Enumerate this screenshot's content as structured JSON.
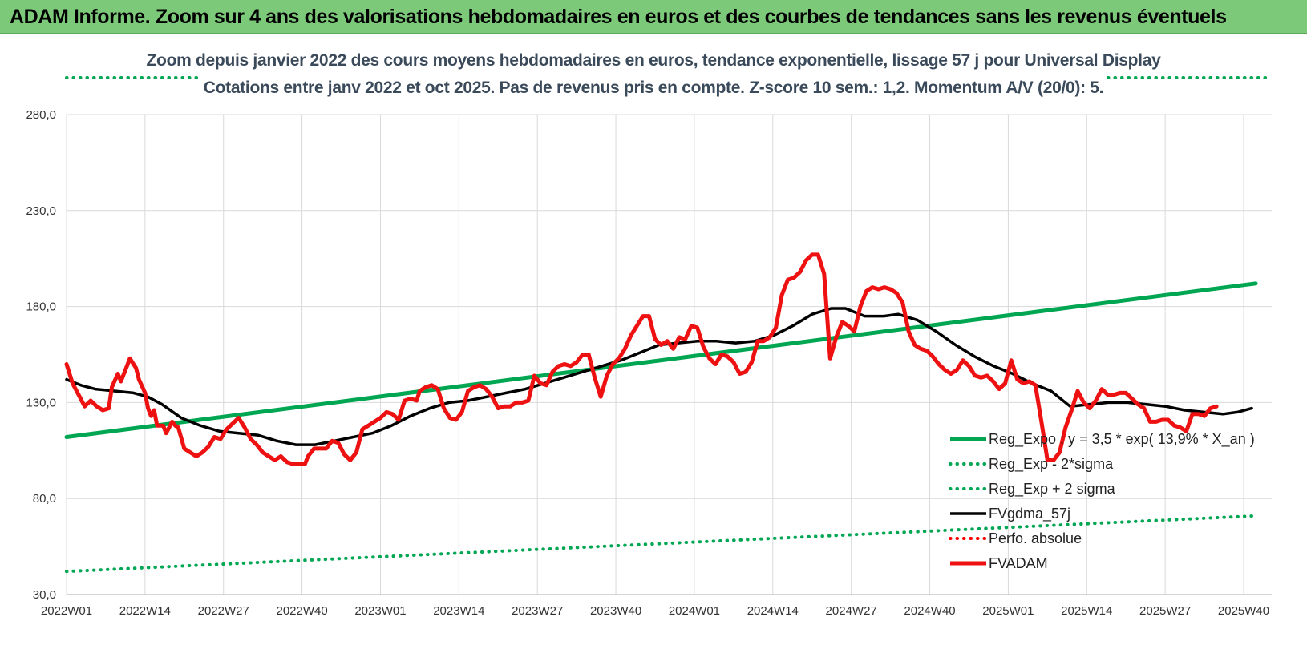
{
  "header": {
    "title": "ADAM Informe. Zoom sur 4 ans des valorisations hebdomadaires en euros et des courbes de tendances sans les revenus éventuels"
  },
  "chart_data": {
    "type": "line",
    "title": "Zoom depuis janvier 2022 des cours moyens hebdomadaires en euros, tendance exponentielle, lissage 57 j pour Universal Display",
    "subtitle": "Cotations entre janv 2022 et oct 2025. Pas de revenus pris en compte. Z-score 10 sem.: 1,2. Momentum A/V (20/0): 5.",
    "xlabel": "",
    "ylabel": "",
    "ylim": [
      30,
      280
    ],
    "yticks": [
      "30,0",
      "80,0",
      "130,0",
      "180,0",
      "230,0",
      "280,0"
    ],
    "yticks_values": [
      30,
      80,
      130,
      180,
      230,
      280
    ],
    "xticks": [
      "2022W01",
      "2022W14",
      "2022W27",
      "2022W40",
      "2023W01",
      "2023W14",
      "2023W27",
      "2023W40",
      "2024W01",
      "2024W14",
      "2024W27",
      "2024W40",
      "2025W01",
      "2025W14",
      "2025W27",
      "2025W40"
    ],
    "xrange_weeks": 197,
    "grid": true,
    "legend_position": "bottom-right",
    "series": [
      {
        "name": "Reg_Expo : y = 3,5 * exp( 13,9% *  X_an )",
        "color": "#00a651",
        "style": "solid",
        "points": [
          [
            0,
            112
          ],
          [
            197,
            192
          ]
        ]
      },
      {
        "name": "Reg_Exp - 2*sigma",
        "color": "#00a651",
        "style": "dotted",
        "points": [
          [
            0,
            42
          ],
          [
            197,
            71
          ]
        ]
      },
      {
        "name": "Reg_Exp + 2 sigma",
        "color": "#00a651",
        "style": "dotted",
        "points": [
          [
            0,
            297
          ],
          [
            197,
            297
          ]
        ]
      },
      {
        "name": "FVgdma_57j",
        "color": "#000000",
        "style": "solid",
        "points": [
          [
            0,
            142
          ],
          [
            3,
            139
          ],
          [
            6,
            137
          ],
          [
            10,
            136
          ],
          [
            14,
            135
          ],
          [
            17,
            133
          ],
          [
            20,
            129
          ],
          [
            24,
            122
          ],
          [
            28,
            118
          ],
          [
            32,
            115
          ],
          [
            36,
            114
          ],
          [
            40,
            113
          ],
          [
            44,
            110
          ],
          [
            48,
            108
          ],
          [
            52,
            108
          ],
          [
            56,
            110
          ],
          [
            60,
            112
          ],
          [
            64,
            114
          ],
          [
            68,
            118
          ],
          [
            72,
            123
          ],
          [
            76,
            127
          ],
          [
            80,
            130
          ],
          [
            84,
            131
          ],
          [
            88,
            133
          ],
          [
            92,
            135
          ],
          [
            96,
            137
          ],
          [
            100,
            140
          ],
          [
            104,
            143
          ],
          [
            108,
            146
          ],
          [
            112,
            149
          ],
          [
            116,
            152
          ],
          [
            120,
            156
          ],
          [
            124,
            160
          ],
          [
            128,
            161
          ],
          [
            132,
            162
          ],
          [
            136,
            162
          ],
          [
            140,
            161
          ],
          [
            144,
            162
          ],
          [
            148,
            165
          ],
          [
            152,
            170
          ],
          [
            156,
            176
          ],
          [
            160,
            179
          ],
          [
            163,
            179
          ],
          [
            167,
            175
          ],
          [
            171,
            175
          ],
          [
            174,
            176
          ],
          [
            178,
            173
          ],
          [
            182,
            167
          ],
          [
            186,
            160
          ],
          [
            190,
            154
          ],
          [
            194,
            149
          ],
          [
            198,
            145
          ],
          [
            202,
            140
          ],
          [
            206,
            136
          ],
          [
            210,
            128
          ],
          [
            214,
            129
          ],
          [
            218,
            130
          ],
          [
            222,
            130
          ],
          [
            226,
            129
          ],
          [
            230,
            128
          ],
          [
            234,
            126
          ],
          [
            238,
            125
          ],
          [
            242,
            124
          ],
          [
            245,
            125
          ],
          [
            248,
            127
          ]
        ]
      },
      {
        "name": "Perfo. absolue",
        "color": "#ff0000",
        "style": "dotted",
        "points": []
      },
      {
        "name": "FVADAM",
        "color": "#ee1111",
        "style": "solid",
        "points": [
          [
            0,
            150
          ],
          [
            2,
            140
          ],
          [
            4,
            134
          ],
          [
            6,
            128
          ],
          [
            8,
            131
          ],
          [
            10,
            128
          ],
          [
            12,
            126
          ],
          [
            14,
            127
          ],
          [
            15,
            138
          ],
          [
            17,
            145
          ],
          [
            18,
            141
          ],
          [
            20,
            149
          ],
          [
            21,
            153
          ],
          [
            23,
            148
          ],
          [
            24,
            142
          ],
          [
            26,
            135
          ],
          [
            27,
            127
          ],
          [
            28,
            123
          ],
          [
            29,
            126
          ],
          [
            30,
            118
          ],
          [
            32,
            118
          ],
          [
            33,
            114
          ],
          [
            35,
            120
          ],
          [
            36,
            118
          ],
          [
            37,
            117
          ],
          [
            39,
            106
          ],
          [
            41,
            104
          ],
          [
            43,
            102
          ],
          [
            45,
            104
          ],
          [
            47,
            107
          ],
          [
            49,
            112
          ],
          [
            51,
            111
          ],
          [
            53,
            116
          ],
          [
            55,
            119
          ],
          [
            57,
            122
          ],
          [
            59,
            117
          ],
          [
            61,
            111
          ],
          [
            63,
            108
          ],
          [
            65,
            104
          ],
          [
            67,
            102
          ],
          [
            69,
            100
          ],
          [
            71,
            102
          ],
          [
            73,
            99
          ],
          [
            75,
            98
          ],
          [
            77,
            98
          ],
          [
            79,
            98
          ],
          [
            80,
            102
          ],
          [
            82,
            106
          ],
          [
            84,
            106
          ],
          [
            86,
            106
          ],
          [
            88,
            110
          ],
          [
            90,
            109
          ],
          [
            92,
            103
          ],
          [
            94,
            100
          ],
          [
            96,
            104
          ],
          [
            98,
            116
          ],
          [
            100,
            118
          ],
          [
            102,
            120
          ],
          [
            104,
            122
          ],
          [
            106,
            125
          ],
          [
            108,
            124
          ],
          [
            110,
            121
          ],
          [
            112,
            131
          ],
          [
            114,
            132
          ],
          [
            116,
            131
          ],
          [
            117,
            136
          ],
          [
            119,
            138
          ],
          [
            121,
            139
          ],
          [
            123,
            137
          ],
          [
            125,
            127
          ],
          [
            127,
            122
          ],
          [
            129,
            121
          ],
          [
            131,
            125
          ],
          [
            133,
            136
          ],
          [
            135,
            138
          ],
          [
            137,
            139
          ],
          [
            139,
            137
          ],
          [
            141,
            133
          ],
          [
            143,
            127
          ],
          [
            145,
            128
          ],
          [
            147,
            128
          ],
          [
            149,
            130
          ],
          [
            151,
            130
          ],
          [
            153,
            131
          ],
          [
            155,
            144
          ],
          [
            157,
            140
          ],
          [
            159,
            139
          ],
          [
            161,
            146
          ],
          [
            163,
            149
          ],
          [
            165,
            150
          ],
          [
            167,
            149
          ],
          [
            169,
            151
          ],
          [
            171,
            155
          ],
          [
            173,
            155
          ],
          [
            175,
            143
          ],
          [
            177,
            133
          ],
          [
            179,
            144
          ],
          [
            181,
            150
          ],
          [
            183,
            153
          ],
          [
            185,
            158
          ],
          [
            187,
            165
          ],
          [
            189,
            170
          ],
          [
            191,
            175
          ],
          [
            193,
            175
          ],
          [
            195,
            163
          ],
          [
            197,
            160
          ],
          [
            199,
            162
          ],
          [
            201,
            158
          ],
          [
            203,
            164
          ],
          [
            205,
            163
          ],
          [
            207,
            170
          ],
          [
            209,
            169
          ],
          [
            211,
            159
          ],
          [
            213,
            153
          ],
          [
            215,
            150
          ],
          [
            217,
            155
          ],
          [
            219,
            154
          ],
          [
            221,
            151
          ],
          [
            223,
            145
          ],
          [
            225,
            146
          ],
          [
            227,
            151
          ],
          [
            229,
            162
          ],
          [
            231,
            162
          ],
          [
            233,
            164
          ],
          [
            235,
            169
          ],
          [
            237,
            186
          ],
          [
            239,
            194
          ],
          [
            241,
            195
          ],
          [
            243,
            198
          ],
          [
            245,
            204
          ],
          [
            247,
            207
          ],
          [
            249,
            207
          ],
          [
            251,
            197
          ],
          [
            253,
            153
          ],
          [
            255,
            164
          ],
          [
            257,
            172
          ],
          [
            259,
            170
          ],
          [
            261,
            167
          ],
          [
            263,
            180
          ],
          [
            265,
            188
          ],
          [
            267,
            190
          ],
          [
            269,
            189
          ],
          [
            271,
            190
          ],
          [
            273,
            189
          ],
          [
            275,
            187
          ],
          [
            277,
            182
          ],
          [
            279,
            167
          ],
          [
            281,
            160
          ],
          [
            283,
            158
          ],
          [
            285,
            157
          ],
          [
            287,
            154
          ],
          [
            289,
            150
          ],
          [
            291,
            147
          ],
          [
            293,
            145
          ],
          [
            295,
            147
          ],
          [
            297,
            152
          ],
          [
            299,
            149
          ],
          [
            301,
            144
          ],
          [
            303,
            143
          ],
          [
            305,
            144
          ],
          [
            307,
            141
          ],
          [
            309,
            137
          ],
          [
            311,
            140
          ],
          [
            313,
            152
          ],
          [
            315,
            142
          ],
          [
            317,
            140
          ],
          [
            319,
            141
          ],
          [
            321,
            139
          ],
          [
            323,
            120
          ],
          [
            325,
            100
          ],
          [
            327,
            100
          ],
          [
            329,
            104
          ],
          [
            331,
            117
          ],
          [
            333,
            126
          ],
          [
            335,
            136
          ],
          [
            337,
            130
          ],
          [
            339,
            127
          ],
          [
            341,
            131
          ],
          [
            343,
            137
          ],
          [
            345,
            134
          ],
          [
            347,
            134
          ],
          [
            349,
            135
          ],
          [
            351,
            135
          ],
          [
            353,
            132
          ],
          [
            355,
            129
          ],
          [
            357,
            127
          ],
          [
            359,
            120
          ],
          [
            361,
            120
          ],
          [
            363,
            121
          ],
          [
            365,
            121
          ],
          [
            367,
            118
          ],
          [
            369,
            117
          ],
          [
            371,
            115
          ],
          [
            373,
            124
          ],
          [
            375,
            124
          ],
          [
            377,
            123
          ],
          [
            379,
            127
          ],
          [
            381,
            128
          ]
        ]
      }
    ],
    "legend": [
      {
        "label": "Reg_Expo : y = 3,5 * exp( 13,9% *  X_an )",
        "color": "#00a651",
        "style": "solid"
      },
      {
        "label": "Reg_Exp - 2*sigma",
        "color": "#00a651",
        "style": "dotted"
      },
      {
        "label": "Reg_Exp + 2 sigma",
        "color": "#00a651",
        "style": "dotted"
      },
      {
        "label": "FVgdma_57j",
        "color": "#000000",
        "style": "solid"
      },
      {
        "label": "Perfo. absolue",
        "color": "#ff0000",
        "style": "dotted"
      },
      {
        "label": "FVADAM",
        "color": "#ee1111",
        "style": "solid"
      }
    ]
  }
}
